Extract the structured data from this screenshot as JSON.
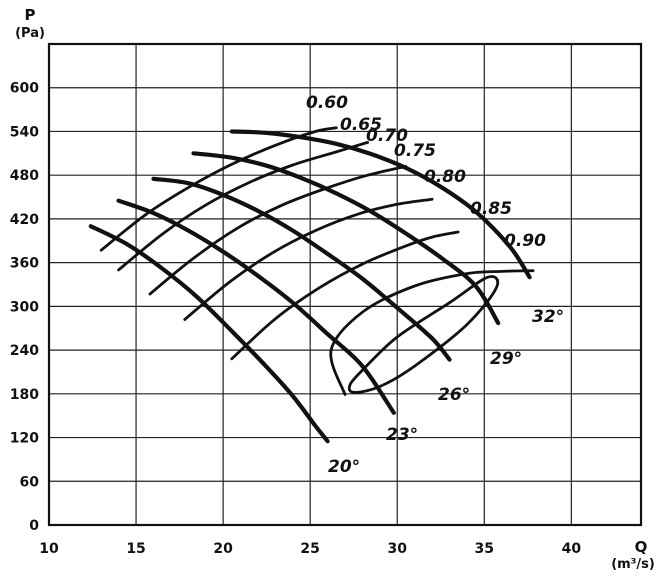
{
  "chart_data": {
    "type": "line",
    "title": "",
    "xlabel": "Q",
    "xunit": "(m³/s)",
    "ylabel": "P",
    "yunit": "(Pa)",
    "xlim": [
      10,
      44
    ],
    "ylim": [
      0,
      660
    ],
    "x_ticks": [
      10,
      15,
      20,
      25,
      30,
      35,
      40
    ],
    "y_ticks": [
      0,
      60,
      120,
      180,
      240,
      300,
      360,
      420,
      480,
      540,
      600
    ],
    "grid": true,
    "pressure_curves": [
      {
        "name": "20°",
        "points": [
          [
            12.4,
            410
          ],
          [
            14.5,
            385
          ],
          [
            16.5,
            352
          ],
          [
            18.5,
            313
          ],
          [
            20.5,
            266
          ],
          [
            22.5,
            217
          ],
          [
            24.0,
            177
          ],
          [
            25.3,
            136
          ],
          [
            26.0,
            115
          ]
        ]
      },
      {
        "name": "23°",
        "points": [
          [
            14.0,
            445
          ],
          [
            16.0,
            428
          ],
          [
            18.0,
            404
          ],
          [
            20.0,
            375
          ],
          [
            22.0,
            342
          ],
          [
            24.0,
            305
          ],
          [
            26.0,
            262
          ],
          [
            28.0,
            218
          ],
          [
            29.8,
            154
          ]
        ]
      },
      {
        "name": "26°",
        "points": [
          [
            16.0,
            475
          ],
          [
            18.0,
            469
          ],
          [
            20.0,
            453
          ],
          [
            22.0,
            431
          ],
          [
            24.0,
            404
          ],
          [
            26.0,
            372
          ],
          [
            28.0,
            338
          ],
          [
            30.0,
            298
          ],
          [
            32.0,
            256
          ],
          [
            33.0,
            227
          ]
        ]
      },
      {
        "name": "29°",
        "points": [
          [
            18.3,
            510
          ],
          [
            20.5,
            504
          ],
          [
            22.5,
            493
          ],
          [
            24.5,
            476
          ],
          [
            26.5,
            455
          ],
          [
            28.5,
            430
          ],
          [
            30.5,
            400
          ],
          [
            32.5,
            367
          ],
          [
            34.5,
            328
          ],
          [
            35.8,
            277
          ]
        ]
      },
      {
        "name": "32°",
        "points": [
          [
            20.5,
            540
          ],
          [
            22.5,
            538
          ],
          [
            24.5,
            532
          ],
          [
            26.5,
            523
          ],
          [
            28.5,
            509
          ],
          [
            30.5,
            490
          ],
          [
            32.5,
            464
          ],
          [
            34.5,
            430
          ],
          [
            36.5,
            381
          ],
          [
            37.6,
            340
          ]
        ]
      }
    ],
    "efficiency_curves": [
      {
        "name": "0.60",
        "points": [
          [
            13.0,
            377
          ],
          [
            15.5,
            425
          ],
          [
            18.0,
            463
          ],
          [
            20.5,
            495
          ],
          [
            23.0,
            521
          ],
          [
            25.3,
            540
          ],
          [
            26.5,
            545
          ]
        ]
      },
      {
        "name": "0.65",
        "points": [
          [
            14.0,
            350
          ],
          [
            16.5,
            399
          ],
          [
            19.0,
            439
          ],
          [
            21.5,
            470
          ],
          [
            24.0,
            494
          ],
          [
            26.5,
            512
          ],
          [
            28.3,
            525
          ]
        ]
      },
      {
        "name": "0.70",
        "points": [
          [
            15.8,
            317
          ],
          [
            18.3,
            366
          ],
          [
            20.8,
            407
          ],
          [
            23.3,
            438
          ],
          [
            25.8,
            461
          ],
          [
            28.3,
            480
          ],
          [
            30.5,
            492
          ]
        ]
      },
      {
        "name": "0.75",
        "points": [
          [
            17.8,
            282
          ],
          [
            20.3,
            332
          ],
          [
            22.8,
            373
          ],
          [
            25.3,
            404
          ],
          [
            27.8,
            427
          ],
          [
            30.0,
            440
          ],
          [
            32.0,
            447
          ]
        ]
      },
      {
        "name": "0.80",
        "points": [
          [
            20.5,
            228
          ],
          [
            23.0,
            283
          ],
          [
            25.5,
            325
          ],
          [
            28.0,
            358
          ],
          [
            30.5,
            383
          ],
          [
            32.0,
            395
          ],
          [
            33.5,
            402
          ]
        ]
      },
      {
        "name": "0.85",
        "points": [
          [
            27.0,
            179
          ],
          [
            26.2,
            240
          ],
          [
            28.0,
            292
          ],
          [
            31.0,
            328
          ],
          [
            34.0,
            345
          ],
          [
            36.0,
            348
          ],
          [
            37.8,
            349
          ]
        ]
      },
      {
        "name": "0.90",
        "points": [
          [
            28.1,
            215
          ],
          [
            30.0,
            258
          ],
          [
            33.0,
            305
          ],
          [
            35.2,
            340
          ],
          [
            35.7,
            326
          ],
          [
            34.0,
            275
          ],
          [
            31.0,
            218
          ],
          [
            29.0,
            190
          ],
          [
            27.5,
            182
          ],
          [
            27.3,
            193
          ],
          [
            28.1,
            215
          ]
        ]
      }
    ]
  },
  "labels": {
    "y_title": "P",
    "y_unit": "(Pa)",
    "x_title": "Q",
    "x_unit": "(m³/s)",
    "pressure": [
      "20°",
      "23°",
      "26°",
      "29°",
      "32°"
    ],
    "efficiency": [
      "0.60",
      "0.65",
      "0.70",
      "0.75",
      "0.80",
      "0.85",
      "0.90"
    ]
  }
}
